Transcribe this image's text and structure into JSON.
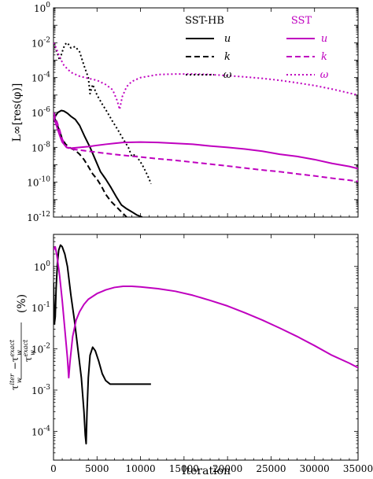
{
  "colors": {
    "sst_hb": "#000000",
    "sst": "#bf00bf"
  },
  "chart_data": [
    {
      "type": "line",
      "ylabel": "L∞[res(φ)]",
      "yscale": "log",
      "xlim": [
        0,
        35000
      ],
      "ylim": [
        1e-12,
        1
      ],
      "yticks": [
        {
          "v": 1,
          "base": "10",
          "exp": "0"
        },
        {
          "v": 0.01,
          "base": "10",
          "exp": "-2"
        },
        {
          "v": 0.0001,
          "base": "10",
          "exp": "-4"
        },
        {
          "v": 1e-06,
          "base": "10",
          "exp": "-6"
        },
        {
          "v": 1e-08,
          "base": "10",
          "exp": "-8"
        },
        {
          "v": 1e-10,
          "base": "10",
          "exp": "-10"
        },
        {
          "v": 1e-12,
          "base": "10",
          "exp": "-12"
        }
      ],
      "legend": {
        "placement": "top-right",
        "groups": [
          {
            "title": "SST-HB",
            "color_key": "sst_hb",
            "items": [
              "u",
              "k",
              "ω"
            ]
          },
          {
            "title": "SST",
            "color_key": "sst",
            "items": [
              "u",
              "k",
              "ω"
            ]
          }
        ]
      },
      "series": [
        {
          "group": "SST-HB",
          "name": "u",
          "style": "solid",
          "color_key": "sst_hb",
          "x": [
            0,
            200,
            500,
            900,
            1200,
            1600,
            2000,
            2500,
            3000,
            3600,
            4200,
            4800,
            5400,
            6000,
            6600,
            7200,
            7800,
            8400,
            9000,
            9600,
            10200
          ],
          "y": [
            3e-07,
            6e-07,
            1e-06,
            1.3e-06,
            1.2e-06,
            9e-07,
            6e-07,
            4e-07,
            1.8e-07,
            4e-08,
            1e-08,
            2e-09,
            4e-10,
            1.5e-10,
            5e-11,
            1.5e-11,
            5e-12,
            3e-12,
            2e-12,
            1.3e-12,
            1e-12
          ]
        },
        {
          "group": "SST-HB",
          "name": "k",
          "style": "dashed",
          "color_key": "sst_hb",
          "x": [
            0,
            200,
            400,
            700,
            1000,
            1400,
            1800,
            2200,
            2600,
            3000,
            3500,
            4000,
            4500,
            5000,
            5500,
            6000,
            6600,
            7200,
            7800,
            8400
          ],
          "y": [
            5e-07,
            4e-07,
            2e-07,
            9e-08,
            3e-08,
            1.5e-08,
            1e-08,
            8e-09,
            6e-09,
            4e-09,
            2e-09,
            8e-10,
            3e-10,
            1.5e-10,
            6e-11,
            2e-11,
            8e-12,
            4e-12,
            2e-12,
            1e-12
          ]
        },
        {
          "group": "SST-HB",
          "name": "ω",
          "style": "dotted",
          "color_key": "sst_hb",
          "x": [
            0,
            300,
            700,
            1000,
            1300,
            1600,
            2000,
            2500,
            3000,
            3500,
            4000,
            4200,
            4500,
            5000,
            5600,
            6200,
            6800,
            7400,
            8000,
            8600,
            9000,
            9400,
            9800,
            10200,
            10600,
            11000,
            11200
          ],
          "y": [
            0.01,
            0.004,
            0.001,
            0.003,
            0.008,
            0.01,
            0.005,
            0.006,
            0.003,
            0.0005,
            0.0001,
            1.2e-05,
            4e-05,
            1e-05,
            3e-06,
            1e-06,
            3e-07,
            1e-07,
            3e-08,
            1e-08,
            3e-09,
            4e-09,
            2e-09,
            1e-09,
            4e-10,
            1.5e-10,
            8e-11
          ]
        },
        {
          "group": "SST",
          "name": "u",
          "style": "solid",
          "color_key": "sst",
          "x": [
            0,
            300,
            700,
            1000,
            1500,
            2000,
            3000,
            4000,
            5000,
            6000,
            7000,
            8000,
            10000,
            12000,
            14000,
            16000,
            18000,
            20000,
            22000,
            24000,
            26000,
            28000,
            30000,
            32000,
            34000,
            35000
          ],
          "y": [
            6e-07,
            2e-07,
            5e-08,
            2e-08,
            1e-08,
            9e-09,
            1e-08,
            1.1e-08,
            1.3e-08,
            1.5e-08,
            1.7e-08,
            1.9e-08,
            2e-08,
            1.9e-08,
            1.7e-08,
            1.5e-08,
            1.2e-08,
            1e-08,
            8e-09,
            6e-09,
            4e-09,
            3e-09,
            2e-09,
            1.2e-09,
            8e-10,
            6e-10
          ]
        },
        {
          "group": "SST",
          "name": "k",
          "style": "dashed",
          "color_key": "sst",
          "x": [
            0,
            300,
            700,
            1000,
            1500,
            2000,
            4000,
            6000,
            8000,
            10000,
            12000,
            14000,
            16000,
            18000,
            20000,
            22000,
            24000,
            26000,
            28000,
            30000,
            32000,
            34000,
            35000
          ],
          "y": [
            1e-06,
            4e-07,
            1e-07,
            3e-08,
            1e-08,
            8e-09,
            6e-09,
            4.5e-09,
            3.5e-09,
            2.8e-09,
            2.2e-09,
            1.8e-09,
            1.4e-09,
            1.1e-09,
            8.5e-10,
            6.5e-10,
            5e-10,
            4e-10,
            3e-10,
            2.3e-10,
            1.7e-10,
            1.3e-10,
            1.1e-10
          ]
        },
        {
          "group": "SST",
          "name": "ω",
          "style": "dotted",
          "color_key": "sst",
          "x": [
            0,
            300,
            700,
            1200,
            2000,
            3000,
            4000,
            5000,
            6000,
            6800,
            7300,
            7600,
            7900,
            8400,
            9000,
            10000,
            12000,
            14000,
            16000,
            18000,
            20000,
            22000,
            24000,
            26000,
            28000,
            30000,
            32000,
            34000,
            35000
          ],
          "y": [
            0.01,
            0.005,
            0.0015,
            0.0005,
            0.0002,
            0.00012,
            9e-05,
            7e-05,
            4e-05,
            2e-05,
            5e-06,
            1.5e-06,
            8e-06,
            3e-05,
            6e-05,
            0.0001,
            0.00015,
            0.00016,
            0.00016,
            0.00015,
            0.00013,
            0.00011,
            9e-05,
            7e-05,
            5e-05,
            3.5e-05,
            2.2e-05,
            1.3e-05,
            1e-05
          ]
        }
      ]
    },
    {
      "type": "line",
      "xlabel": "Iteration",
      "ylabel": "(τ_w^iter − τ_w^exact) / τ_w^exact (%)",
      "ylabel_parts": {
        "tau": "τ",
        "w": "w",
        "iter": "iter",
        "exact": "exact",
        "minus": "−",
        "unit": "(%)"
      },
      "yscale": "log",
      "xlim": [
        0,
        35000
      ],
      "ylim": [
        2e-05,
        6
      ],
      "xticks": [
        0,
        5000,
        10000,
        15000,
        20000,
        25000,
        30000,
        35000
      ],
      "xtick_labels": [
        "0",
        "5000",
        "10000",
        "15000",
        "20000",
        "25000",
        "30000",
        "35000"
      ],
      "yticks": [
        {
          "v": 1,
          "base": "10",
          "exp": "0"
        },
        {
          "v": 0.1,
          "base": "10",
          "exp": "-1"
        },
        {
          "v": 0.01,
          "base": "10",
          "exp": "-2"
        },
        {
          "v": 0.001,
          "base": "10",
          "exp": "-3"
        },
        {
          "v": 0.0001,
          "base": "10",
          "exp": "-4"
        }
      ],
      "series": [
        {
          "group": "SST-HB",
          "name": "u",
          "style": "solid",
          "color_key": "sst_hb",
          "x": [
            0,
            100,
            200,
            300,
            450,
            600,
            800,
            1000,
            1300,
            1600,
            2000,
            2400,
            2800,
            3200,
            3500,
            3650,
            3750,
            3850,
            4000,
            4200,
            4500,
            4800,
            5200,
            5600,
            6000,
            6500,
            7000,
            7500,
            8000,
            9000,
            10000,
            11200
          ],
          "y": [
            0.4,
            0.04,
            0.06,
            0.3,
            1.2,
            2.5,
            3.3,
            3.0,
            2.0,
            1.0,
            0.2,
            0.05,
            0.01,
            0.002,
            0.0003,
            8e-05,
            5e-05,
            0.0003,
            0.002,
            0.007,
            0.011,
            0.009,
            0.005,
            0.0025,
            0.0017,
            0.0014,
            0.0014,
            0.0014,
            0.0014,
            0.0014,
            0.0014,
            0.0014
          ]
        },
        {
          "group": "SST",
          "name": "u",
          "style": "solid",
          "color_key": "sst",
          "x": [
            0,
            200,
            400,
            700,
            1000,
            1300,
            1600,
            1750,
            1900,
            2200,
            2600,
            3000,
            3500,
            4000,
            5000,
            6000,
            7000,
            8000,
            9000,
            10000,
            12000,
            14000,
            16000,
            18000,
            20000,
            22000,
            24000,
            26000,
            28000,
            30000,
            32000,
            34000,
            35000
          ],
          "y": [
            2.5,
            3.0,
            1.8,
            0.6,
            0.15,
            0.03,
            0.006,
            0.002,
            0.005,
            0.02,
            0.05,
            0.08,
            0.12,
            0.16,
            0.22,
            0.27,
            0.31,
            0.33,
            0.33,
            0.32,
            0.29,
            0.25,
            0.2,
            0.15,
            0.11,
            0.075,
            0.05,
            0.032,
            0.02,
            0.012,
            0.007,
            0.0045,
            0.0035
          ]
        }
      ]
    }
  ]
}
